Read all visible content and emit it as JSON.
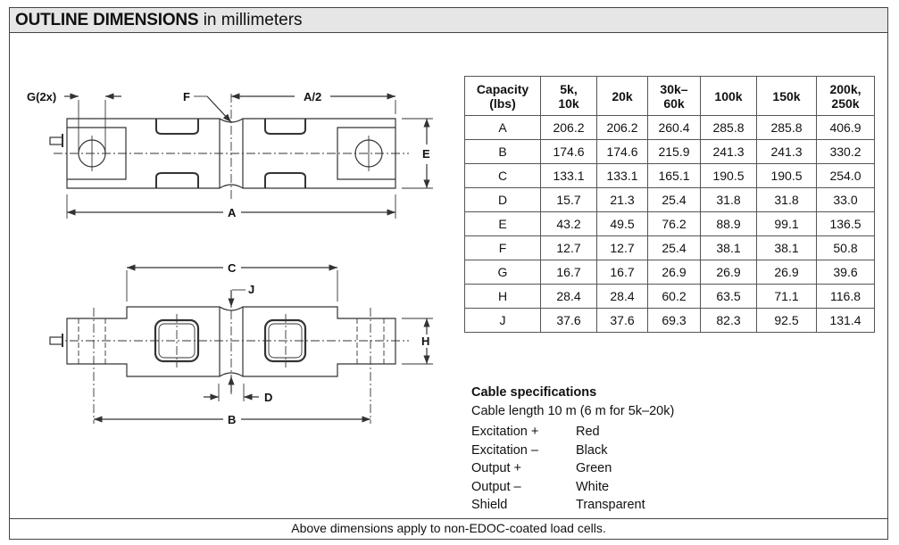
{
  "header": {
    "title_bold": "OUTLINE DIMENSIONS",
    "title_rest": " in millimeters"
  },
  "drawing_labels": {
    "g": "G(2x)",
    "f": "F",
    "a_half": "A/2",
    "e": "E",
    "a": "A",
    "c": "C",
    "j": "J",
    "h": "H",
    "d": "D",
    "b": "B"
  },
  "table": {
    "headers": [
      "Capacity (lbs)",
      "5k, 10k",
      "20k",
      "30k–60k",
      "100k",
      "150k",
      "200k, 250k"
    ],
    "header_lines": [
      [
        "Capacity",
        "(lbs)"
      ],
      [
        "5k,",
        "10k"
      ],
      [
        "20k",
        ""
      ],
      [
        "30k–",
        "60k"
      ],
      [
        "100k",
        ""
      ],
      [
        "150k",
        ""
      ],
      [
        "200k,",
        "250k"
      ]
    ],
    "rows": [
      [
        "A",
        "206.2",
        "206.2",
        "260.4",
        "285.8",
        "285.8",
        "406.9"
      ],
      [
        "B",
        "174.6",
        "174.6",
        "215.9",
        "241.3",
        "241.3",
        "330.2"
      ],
      [
        "C",
        "133.1",
        "133.1",
        "165.1",
        "190.5",
        "190.5",
        "254.0"
      ],
      [
        "D",
        "15.7",
        "21.3",
        "25.4",
        "31.8",
        "31.8",
        "33.0"
      ],
      [
        "E",
        "43.2",
        "49.5",
        "76.2",
        "88.9",
        "99.1",
        "136.5"
      ],
      [
        "F",
        "12.7",
        "12.7",
        "25.4",
        "38.1",
        "38.1",
        "50.8"
      ],
      [
        "G",
        "16.7",
        "16.7",
        "26.9",
        "26.9",
        "26.9",
        "39.6"
      ],
      [
        "H",
        "28.4",
        "28.4",
        "60.2",
        "63.5",
        "71.1",
        "116.8"
      ],
      [
        "J",
        "37.6",
        "37.6",
        "69.3",
        "82.3",
        "92.5",
        "131.4"
      ]
    ]
  },
  "cable": {
    "title": "Cable specifications",
    "length": "Cable length 10 m (6 m for 5k–20k)",
    "wires": [
      {
        "signal": "Excitation +",
        "color": "Red"
      },
      {
        "signal": "Excitation –",
        "color": "Black"
      },
      {
        "signal": "Output +",
        "color": "Green"
      },
      {
        "signal": "Output –",
        "color": "White"
      },
      {
        "signal": "Shield",
        "color": "Transparent"
      }
    ]
  },
  "footer": "Above dimensions apply to non-EDOC-coated load cells."
}
